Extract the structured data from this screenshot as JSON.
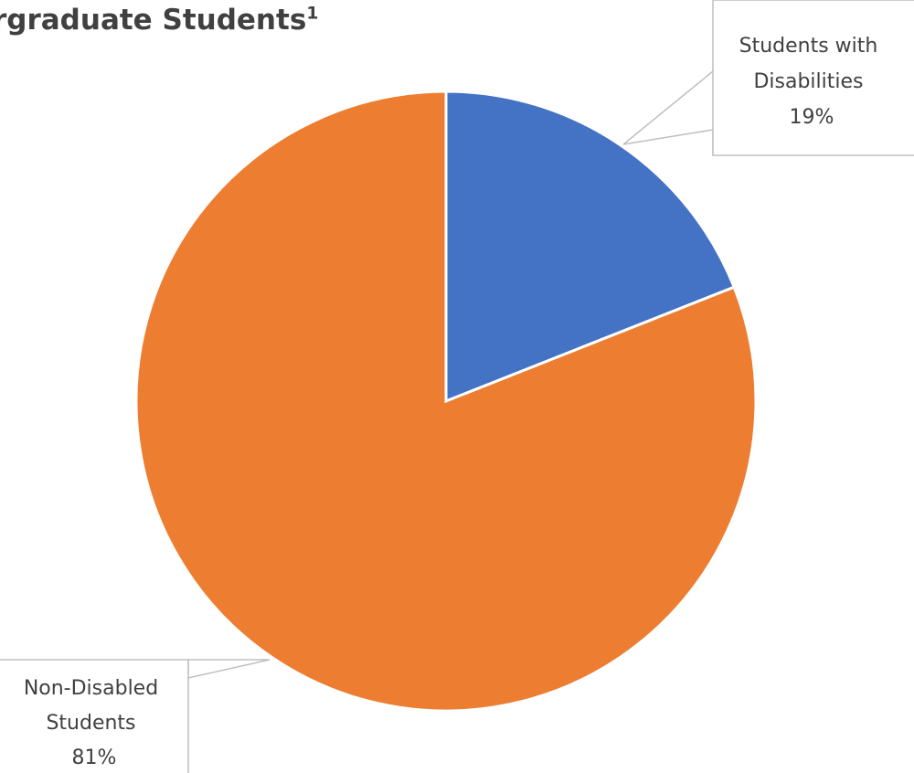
{
  "chart_data": {
    "type": "pie",
    "title": "rgraduate Students",
    "title_footnote": "1",
    "slices": [
      {
        "label": "Students with Disabilities",
        "label_lines": [
          "Students with",
          "Disabilities"
        ],
        "value": 19,
        "value_label": "19%",
        "color": "#4472C4"
      },
      {
        "label": "Non-Disabled Students",
        "label_lines": [
          "Non-Disabled",
          "Students"
        ],
        "value": 81,
        "value_label": "81%",
        "color": "#ED7D31"
      }
    ],
    "start_angle_deg": 0,
    "direction": "clockwise",
    "legend": "none",
    "data_labels": "callouts"
  }
}
